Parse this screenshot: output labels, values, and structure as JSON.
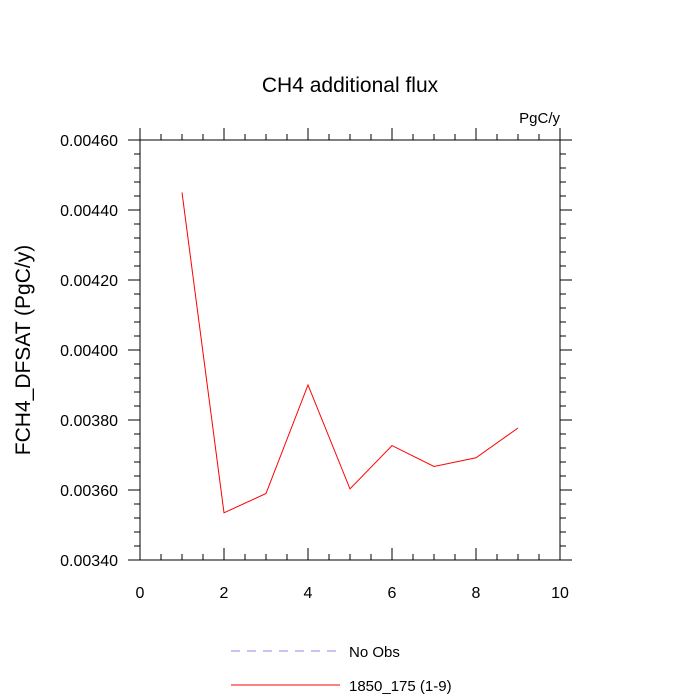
{
  "chart_data": {
    "type": "line",
    "title": "CH4 additional flux",
    "units": "PgC/y",
    "xlabel": "",
    "ylabel": "FCH4_DFSAT  (PgC/y)",
    "xlim": [
      0,
      10
    ],
    "ylim": [
      0.0034,
      0.0046
    ],
    "x_ticks": [
      "0",
      "2",
      "4",
      "6",
      "8",
      "10"
    ],
    "y_ticks": [
      "0.00340",
      "0.00360",
      "0.00380",
      "0.00400",
      "0.00420",
      "0.00440",
      "0.00460"
    ],
    "grid": false,
    "series": [
      {
        "name": "1850_175 (1-9)",
        "color": "#ff0000",
        "style": "solid",
        "x": [
          1,
          2,
          3,
          4,
          5,
          6,
          7,
          8,
          9
        ],
        "y": [
          0.00445,
          0.003535,
          0.00359,
          0.0039,
          0.003603,
          0.003727,
          0.003667,
          0.003692,
          0.003777
        ]
      }
    ],
    "legend": [
      {
        "label": "No Obs",
        "color": "#8a8aee",
        "style": "dashed"
      },
      {
        "label": "1850_175 (1-9)",
        "color": "#ff0000",
        "style": "solid"
      }
    ],
    "legend_position": "bottom-center"
  }
}
